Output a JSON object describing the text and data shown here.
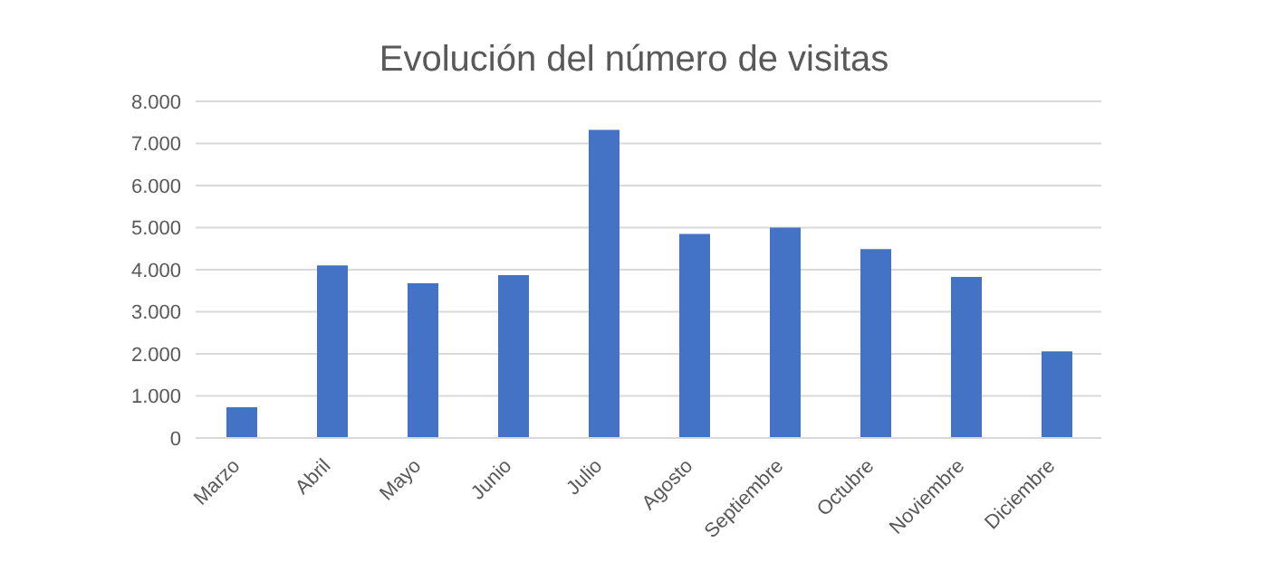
{
  "chart_data": {
    "type": "bar",
    "title": "Evolución del número de visitas",
    "categories": [
      "Marzo",
      "Abril",
      "Mayo",
      "Junio",
      "Julio",
      "Agosto",
      "Septiembre",
      "Octubre",
      "Noviembre",
      "Diciembre"
    ],
    "values": [
      730,
      4100,
      3680,
      3870,
      7320,
      4850,
      5000,
      4490,
      3830,
      2060
    ],
    "color": "#4472c4",
    "ylim": [
      0,
      8000
    ],
    "yticks": [
      {
        "value": 0,
        "label": "0"
      },
      {
        "value": 1000,
        "label": "1.000"
      },
      {
        "value": 2000,
        "label": "2.000"
      },
      {
        "value": 3000,
        "label": "3.000"
      },
      {
        "value": 4000,
        "label": "4.000"
      },
      {
        "value": 5000,
        "label": "5.000"
      },
      {
        "value": 6000,
        "label": "6.000"
      },
      {
        "value": 7000,
        "label": "7.000"
      },
      {
        "value": 8000,
        "label": "8.000"
      }
    ],
    "grid": "y",
    "legend": false
  }
}
